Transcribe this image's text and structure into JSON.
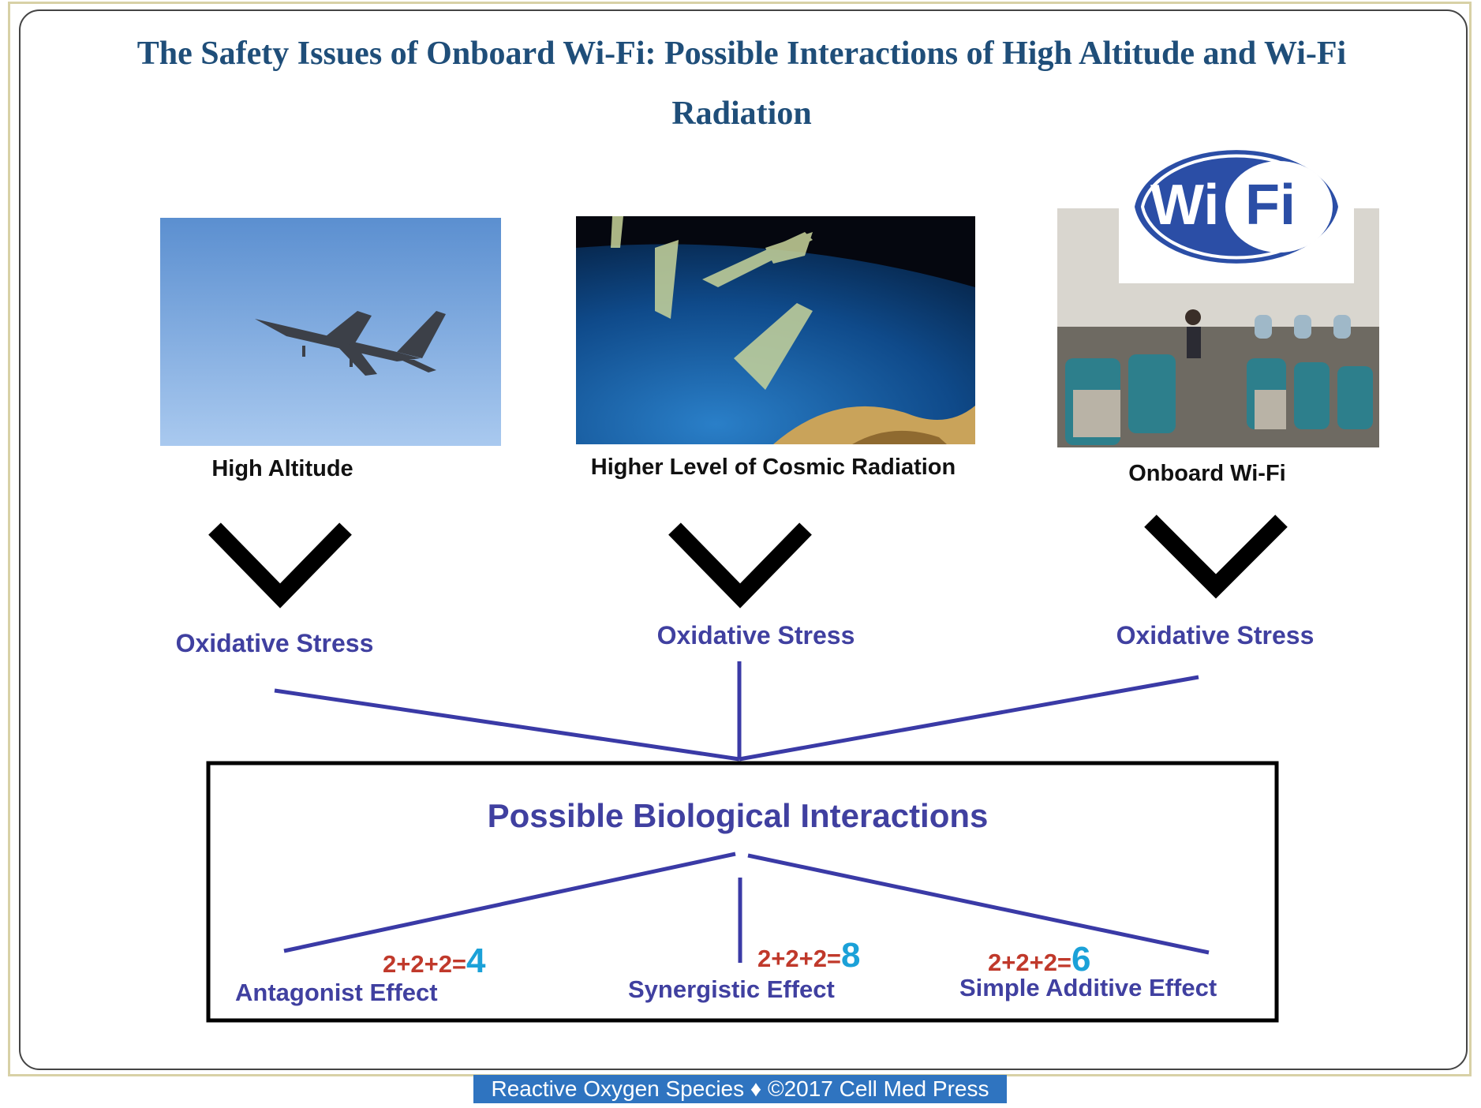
{
  "title": "The Safety Issues of Onboard Wi-Fi: Possible Interactions of High Altitude and Wi-Fi Radiation",
  "sources": [
    {
      "label": "High Altitude"
    },
    {
      "label": "Higher Level of Cosmic Radiation"
    },
    {
      "label": "Onboard Wi-Fi"
    }
  ],
  "wifi_logo": {
    "left": "Wi",
    "right": "Fi"
  },
  "stress_label": "Oxidative Stress",
  "interactions": {
    "title": "Possible Biological Interactions",
    "effects": [
      {
        "label": "Antagonist Effect",
        "equation": "2+2+2=",
        "result": "4"
      },
      {
        "label": "Synergistic Effect",
        "equation": "2+2+2=",
        "result": "8"
      },
      {
        "label": "Simple Additive Effect",
        "equation": "2+2+2=",
        "result": "6"
      }
    ]
  },
  "footer": "Reactive Oxygen Species ♦ ©2017 Cell Med Press",
  "colors": {
    "title": "#1f4e79",
    "accent": "#4040a0",
    "equation": "#c0392b",
    "result": "#1ba1d8",
    "footer_bg": "#2f74c0"
  }
}
